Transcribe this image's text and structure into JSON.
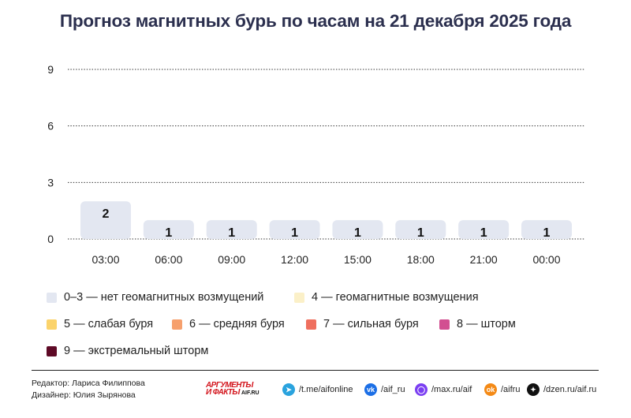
{
  "title": "Прогноз магнитных бурь по часам на 21 декабря 2025 года",
  "chart_data": {
    "type": "bar",
    "title": "Прогноз магнитных бурь по часам на 21 декабря 2025 года",
    "categories": [
      "03:00",
      "06:00",
      "09:00",
      "12:00",
      "15:00",
      "18:00",
      "21:00",
      "00:00"
    ],
    "values": [
      2,
      1,
      1,
      1,
      1,
      1,
      1,
      1
    ],
    "yticks": [
      0,
      3,
      6,
      9
    ],
    "ylim": [
      0,
      9
    ],
    "grid": true,
    "bar_color": "#e3e7f1",
    "legend_placement": "bottom"
  },
  "legend": [
    {
      "label": "0–3 — нет геомагнитных возмущений",
      "color": "#e3e7f1"
    },
    {
      "label": "4 — геомагнитные возмущения",
      "color": "#fbf0c8"
    },
    {
      "label": "5 — слабая буря",
      "color": "#fbd36b"
    },
    {
      "label": "6 — средняя буря",
      "color": "#f6a06d"
    },
    {
      "label": "7 — сильная буря",
      "color": "#ef6f5e"
    },
    {
      "label": "8 — шторм",
      "color": "#d24f91"
    },
    {
      "label": "9 — экстремальный шторм",
      "color": "#5e0a26"
    }
  ],
  "credits": {
    "editor": "Редактор: Лариса Филиппова",
    "designer": "Дизайнер: Юлия Зырянова"
  },
  "brand": {
    "line1": "АРГУМЕНТЫ",
    "line2": "И ФАКТЫ",
    "site": "AIF.RU"
  },
  "social": [
    {
      "icon": "telegram-icon",
      "glyph": "➤",
      "color": "#2aa3de",
      "label": "/t.me/aifonline"
    },
    {
      "icon": "vk-icon",
      "glyph": "vk",
      "color": "#1c6fe6",
      "label": "/aif_ru"
    },
    {
      "icon": "max-icon",
      "glyph": "◯",
      "color": "#7b3ff2",
      "label": "/max.ru/aif"
    },
    {
      "icon": "ok-icon",
      "glyph": "ok",
      "color": "#f48a16",
      "label": "/aifru"
    },
    {
      "icon": "dzen-icon",
      "glyph": "✦",
      "color": "#111111",
      "label": "/dzen.ru/aif.ru"
    }
  ]
}
